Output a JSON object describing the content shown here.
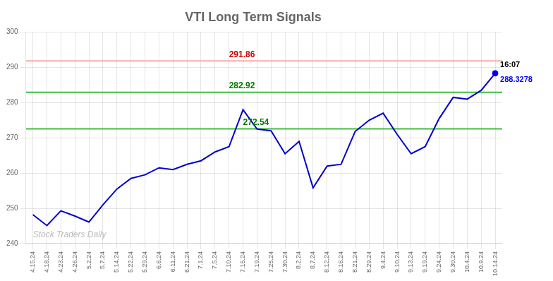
{
  "chart_data": {
    "type": "line",
    "title": "VTI Long Term Signals",
    "categories": [
      "4.15.24",
      "4.18.24",
      "4.23.24",
      "4.26.24",
      "5.2.24",
      "5.7.24",
      "5.14.24",
      "5.22.24",
      "5.29.24",
      "6.6.24",
      "6.11.24",
      "6.21.24",
      "7.1.24",
      "7.5.24",
      "7.10.24",
      "7.15.24",
      "7.19.24",
      "7.25.24",
      "7.30.24",
      "8.2.24",
      "8.7.24",
      "8.12.24",
      "8.16.24",
      "8.21.24",
      "8.29.24",
      "9.4.24",
      "9.10.24",
      "9.13.24",
      "9.19.24",
      "9.24.24",
      "9.30.24",
      "10.4.24",
      "10.9.24",
      "10.14.24"
    ],
    "values": [
      248.2,
      245.1,
      249.3,
      247.8,
      246.1,
      251.0,
      255.5,
      258.5,
      259.5,
      261.5,
      261.0,
      262.5,
      263.5,
      266.0,
      267.5,
      278.0,
      272.5,
      272.0,
      265.5,
      269.0,
      255.8,
      262.0,
      262.5,
      271.8,
      275.0,
      277.0,
      271.0,
      265.5,
      267.5,
      275.5,
      281.5,
      281.0,
      283.5,
      288.33
    ],
    "color": "#0000cc",
    "hlines": [
      {
        "value": 291.86,
        "color": "#ffaaaa",
        "label": "291.86",
        "label_color": "#cc0000",
        "label_at": "7.10.24"
      },
      {
        "value": 282.92,
        "color": "#44bb44",
        "label": "282.92",
        "label_color": "#007700",
        "label_at": "7.10.24"
      },
      {
        "value": 272.54,
        "color": "#44bb44",
        "label": "272.54",
        "label_color": "#007700",
        "label_at": "7.15.24"
      }
    ],
    "last_point": {
      "category": "10.14.24",
      "value": 288.3278,
      "value_label": "288.3278",
      "time_label": "16:07",
      "color": "#0000ff"
    },
    "watermark": {
      "text": "Stock Traders Daily",
      "color": "#bbbbbb"
    },
    "ylim": [
      240,
      300
    ],
    "yticks": [
      240,
      250,
      260,
      270,
      280,
      290,
      300
    ],
    "grid": true
  }
}
